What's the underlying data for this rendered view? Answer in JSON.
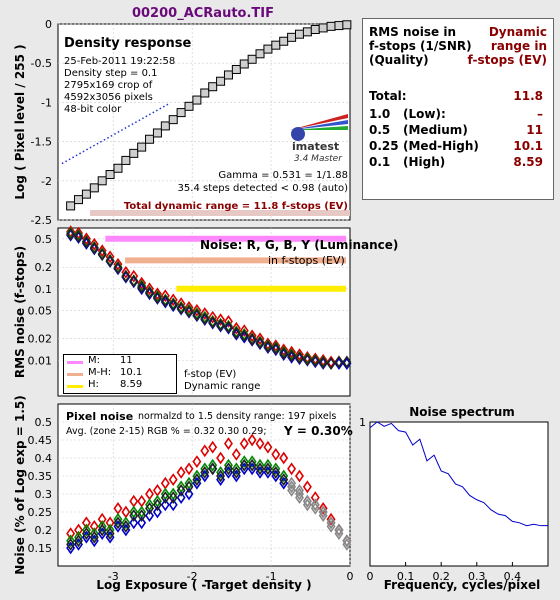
{
  "file_title": "00200_ACRauto.TIF",
  "density": {
    "heading": "Density response",
    "info_lines": [
      "25-Feb-2011 19:22:58",
      "Density step = 0.1",
      "2795x169 crop of",
      "4592x3056 pixels",
      "48-bit color"
    ],
    "gamma_line": "Gamma = 0.531 = 1/1.88",
    "steps_line": "35.4 steps detected < 0.98 (auto)",
    "total_range_line": "Total dynamic range = 11.8 f-stops (EV)",
    "logo_text": "imatest",
    "logo_sub": "3.4  Master"
  },
  "rms_table": {
    "header_left": [
      "RMS noise in",
      "f-stops (1/SNR)",
      "(Quality)"
    ],
    "header_right": [
      "Dynamic",
      "range in",
      "f-stops (EV)"
    ],
    "rows": [
      {
        "key": "Total:",
        "label": "",
        "value": "11.8"
      },
      {
        "key": "1.0",
        "label": "(Low):",
        "value": "–"
      },
      {
        "key": "0.5",
        "label": "(Medium)",
        "value": "11"
      },
      {
        "key": "0.25",
        "label": "(Med-High)",
        "value": "10.1"
      },
      {
        "key": "0.1",
        "label": "(High)",
        "value": "8.59"
      }
    ]
  },
  "noise_panel": {
    "title": "Noise: R, G, B, Y (Luminance)",
    "subtitle": "in f-stops (EV)",
    "legend": [
      {
        "label": "M:",
        "value": "11",
        "color": "#ff88ff"
      },
      {
        "label": "M-H:",
        "value": "10.1",
        "color": "#f0b090"
      },
      {
        "label": "H:",
        "value": "8.59",
        "color": "#ffee00"
      }
    ],
    "legend_note_1": "f-stop (EV)",
    "legend_note_2": "Dynamic range"
  },
  "pixel_noise_panel": {
    "title": "Pixel noise",
    "note": "normalzd to 1.5 density range: 197 pixels",
    "avg_line": "Avg. (zone 2-15) RGB % = 0.32  0.30  0.29;",
    "y_line": "Y = 0.30%"
  },
  "spectrum_panel": {
    "title": "Noise spectrum"
  },
  "chart_data": [
    {
      "type": "line",
      "title": "Density response",
      "xlabel": "",
      "ylabel": "Log ( Pixel level / 255 )",
      "xlim": [
        -3.7,
        0
      ],
      "ylim": [
        -2.5,
        0
      ],
      "yticks": [
        0,
        -0.5,
        -1,
        -1.5,
        -2,
        -2.5
      ],
      "yticklabels": [
        "0",
        "-0.5",
        "-1",
        "-1.5",
        "-2",
        "-2.5"
      ],
      "series": [
        {
          "x": [
            -3.54,
            -3.44,
            -3.34,
            -3.24,
            -3.14,
            -3.04,
            -2.94,
            -2.84,
            -2.74,
            -2.64,
            -2.54,
            -2.44,
            -2.34,
            -2.24,
            -2.14,
            -2.04,
            -1.94,
            -1.84,
            -1.74,
            -1.64,
            -1.54,
            -1.44,
            -1.34,
            -1.24,
            -1.14,
            -1.04,
            -0.94,
            -0.84,
            -0.74,
            -0.64,
            -0.54,
            -0.44,
            -0.34,
            -0.24,
            -0.14,
            -0.04
          ],
          "y": [
            -2.32,
            -2.24,
            -2.17,
            -2.09,
            -2.0,
            -1.92,
            -1.84,
            -1.74,
            -1.65,
            -1.57,
            -1.47,
            -1.39,
            -1.3,
            -1.22,
            -1.13,
            -1.05,
            -0.97,
            -0.88,
            -0.8,
            -0.73,
            -0.65,
            -0.58,
            -0.51,
            -0.45,
            -0.38,
            -0.32,
            -0.27,
            -0.22,
            -0.17,
            -0.13,
            -0.1,
            -0.07,
            -0.05,
            -0.03,
            -0.02,
            -0.01
          ]
        }
      ],
      "gamma_fit_line": {
        "x": [
          -3.65,
          -2.3
        ],
        "y": [
          -1.78,
          -1.02
        ]
      }
    },
    {
      "type": "scatter",
      "title": "Noise: R, G, B, Y (Luminance)",
      "ylabel": "RMS noise (f-stops)",
      "xlim": [
        -3.7,
        0
      ],
      "ylim_log10": [
        -2.5,
        -0.15
      ],
      "yticks": [
        0.5,
        0.2,
        0.1,
        0.05,
        0.02,
        0.01
      ],
      "yticklabels": [
        "0.5",
        "0.2",
        "0.1",
        "0.05",
        "0.02",
        "0.01"
      ],
      "x": [
        -3.54,
        -3.44,
        -3.34,
        -3.24,
        -3.14,
        -3.04,
        -2.94,
        -2.84,
        -2.74,
        -2.64,
        -2.54,
        -2.44,
        -2.34,
        -2.24,
        -2.14,
        -2.04,
        -1.94,
        -1.84,
        -1.74,
        -1.64,
        -1.54,
        -1.44,
        -1.34,
        -1.24,
        -1.14,
        -1.04,
        -0.94,
        -0.84,
        -0.74,
        -0.64,
        -0.54,
        -0.44,
        -0.34,
        -0.24,
        -0.14,
        -0.04
      ],
      "series": [
        {
          "name": "R",
          "color": "#dd0000",
          "values": [
            0.63,
            0.6,
            0.5,
            0.42,
            0.34,
            0.28,
            0.22,
            0.17,
            0.15,
            0.12,
            0.1,
            0.085,
            0.08,
            0.07,
            0.062,
            0.055,
            0.05,
            0.045,
            0.04,
            0.037,
            0.035,
            0.028,
            0.026,
            0.022,
            0.02,
            0.017,
            0.016,
            0.014,
            0.013,
            0.012,
            0.011,
            0.0105,
            0.01,
            0.0095,
            0.0095,
            0.009
          ]
        },
        {
          "name": "G",
          "color": "#008800",
          "values": [
            0.6,
            0.56,
            0.46,
            0.38,
            0.31,
            0.25,
            0.2,
            0.15,
            0.13,
            0.11,
            0.09,
            0.078,
            0.07,
            0.062,
            0.055,
            0.05,
            0.045,
            0.04,
            0.035,
            0.032,
            0.03,
            0.025,
            0.023,
            0.02,
            0.018,
            0.016,
            0.015,
            0.013,
            0.012,
            0.011,
            0.0105,
            0.01,
            0.0095,
            0.009,
            0.009,
            0.009
          ]
        },
        {
          "name": "B",
          "color": "#0000cc",
          "values": [
            0.56,
            0.52,
            0.43,
            0.36,
            0.3,
            0.24,
            0.19,
            0.145,
            0.125,
            0.1,
            0.085,
            0.073,
            0.065,
            0.058,
            0.052,
            0.047,
            0.042,
            0.037,
            0.033,
            0.03,
            0.028,
            0.023,
            0.021,
            0.019,
            0.017,
            0.015,
            0.014,
            0.012,
            0.011,
            0.0105,
            0.01,
            0.0095,
            0.009,
            0.009,
            0.009,
            0.009
          ]
        },
        {
          "name": "Y",
          "color": "#222222",
          "values": [
            0.58,
            0.54,
            0.45,
            0.37,
            0.3,
            0.245,
            0.195,
            0.15,
            0.128,
            0.105,
            0.088,
            0.075,
            0.068,
            0.06,
            0.053,
            0.048,
            0.043,
            0.038,
            0.034,
            0.031,
            0.029,
            0.024,
            0.022,
            0.0195,
            0.0175,
            0.0155,
            0.0145,
            0.0125,
            0.0115,
            0.0108,
            0.0102,
            0.0098,
            0.0093,
            0.009,
            0.0095,
            0.0095
          ]
        }
      ],
      "threshold_lines": [
        {
          "name": "M",
          "value": 0.5,
          "color": "#ff88ff",
          "x": [
            -3.1,
            -0.05
          ]
        },
        {
          "name": "M-H",
          "value": 0.25,
          "color": "#f0b090",
          "x": [
            -2.85,
            -0.05
          ]
        },
        {
          "name": "H",
          "value": 0.1,
          "color": "#ffee00",
          "x": [
            -2.2,
            -0.05
          ]
        }
      ]
    },
    {
      "type": "scatter",
      "title": "Pixel noise",
      "xlabel": "Log Exposure ( -Target density )",
      "ylabel": "Noise (% of Log exp = 1.5)",
      "xlim": [
        -3.7,
        0
      ],
      "ylim": [
        0.1,
        0.55
      ],
      "xticks": [
        -3,
        -2,
        -1,
        0
      ],
      "xticklabels": [
        "-3",
        "-2",
        "-1",
        "0"
      ],
      "yticks": [
        0.15,
        0.2,
        0.25,
        0.3,
        0.35,
        0.4,
        0.45,
        0.5
      ],
      "yticklabels": [
        "0.15",
        "0.2",
        "0.25",
        "0.3",
        "0.35",
        "0.4",
        "0.45",
        "0.5"
      ],
      "x": [
        -3.54,
        -3.44,
        -3.34,
        -3.24,
        -3.14,
        -3.04,
        -2.94,
        -2.84,
        -2.74,
        -2.64,
        -2.54,
        -2.44,
        -2.34,
        -2.24,
        -2.14,
        -2.04,
        -1.94,
        -1.84,
        -1.74,
        -1.64,
        -1.54,
        -1.44,
        -1.34,
        -1.24,
        -1.14,
        -1.04,
        -0.94,
        -0.84,
        -0.74,
        -0.64,
        -0.54,
        -0.44,
        -0.34,
        -0.24,
        -0.14,
        -0.04
      ],
      "series": [
        {
          "name": "R",
          "color": "#dd0000",
          "values": [
            0.19,
            0.2,
            0.22,
            0.21,
            0.23,
            0.22,
            0.26,
            0.25,
            0.28,
            0.28,
            0.3,
            0.31,
            0.33,
            0.34,
            0.36,
            0.37,
            0.39,
            0.42,
            0.43,
            0.4,
            0.44,
            0.41,
            0.44,
            0.45,
            0.44,
            0.43,
            0.41,
            0.4,
            0.37,
            0.35,
            0.32,
            0.29,
            0.26,
            0.23,
            0.2,
            0.17
          ]
        },
        {
          "name": "G",
          "color": "#008800",
          "values": [
            0.17,
            0.18,
            0.2,
            0.19,
            0.21,
            0.2,
            0.23,
            0.22,
            0.25,
            0.25,
            0.27,
            0.28,
            0.3,
            0.3,
            0.32,
            0.33,
            0.35,
            0.37,
            0.38,
            0.36,
            0.38,
            0.37,
            0.39,
            0.39,
            0.38,
            0.38,
            0.37,
            0.35,
            0.33,
            0.31,
            0.28,
            0.27,
            0.25,
            0.22,
            0.2,
            0.17
          ]
        },
        {
          "name": "B",
          "color": "#0000cc",
          "values": [
            0.15,
            0.16,
            0.18,
            0.17,
            0.19,
            0.18,
            0.21,
            0.2,
            0.22,
            0.22,
            0.24,
            0.25,
            0.27,
            0.27,
            0.29,
            0.3,
            0.33,
            0.35,
            0.37,
            0.34,
            0.36,
            0.35,
            0.37,
            0.37,
            0.36,
            0.36,
            0.35,
            0.33,
            0.31,
            0.29,
            0.27,
            0.26,
            0.24,
            0.21,
            0.19,
            0.16
          ]
        },
        {
          "name": "Y",
          "color": "#222222",
          "values": [
            0.16,
            0.17,
            0.19,
            0.18,
            0.2,
            0.19,
            0.22,
            0.21,
            0.24,
            0.24,
            0.26,
            0.27,
            0.29,
            0.29,
            0.31,
            0.32,
            0.34,
            0.36,
            0.37,
            0.35,
            0.37,
            0.36,
            0.38,
            0.38,
            0.37,
            0.37,
            0.36,
            0.34,
            0.32,
            0.3,
            0.28,
            0.27,
            0.25,
            0.22,
            0.2,
            0.17
          ]
        }
      ]
    },
    {
      "type": "line",
      "title": "Noise spectrum",
      "xlabel": "Frequency, cycles/pixel",
      "xlim": [
        0,
        0.5
      ],
      "ylim": [
        0,
        1
      ],
      "xticks": [
        0,
        0.1,
        0.2,
        0.3,
        0.4
      ],
      "xticklabels": [
        "0",
        "0.1",
        "0.2",
        "0.3",
        "0.4"
      ],
      "yticks": [
        1
      ],
      "yticklabels": [
        "1"
      ],
      "x": [
        0,
        0.02,
        0.04,
        0.06,
        0.08,
        0.1,
        0.12,
        0.14,
        0.16,
        0.18,
        0.2,
        0.22,
        0.24,
        0.26,
        0.28,
        0.3,
        0.32,
        0.34,
        0.36,
        0.38,
        0.4,
        0.42,
        0.44,
        0.46,
        0.48,
        0.5
      ],
      "y": [
        0.96,
        1.0,
        0.97,
        0.99,
        0.94,
        0.93,
        0.84,
        0.88,
        0.73,
        0.77,
        0.66,
        0.64,
        0.57,
        0.55,
        0.49,
        0.46,
        0.44,
        0.39,
        0.36,
        0.35,
        0.31,
        0.3,
        0.28,
        0.29,
        0.28,
        0.28
      ]
    }
  ]
}
